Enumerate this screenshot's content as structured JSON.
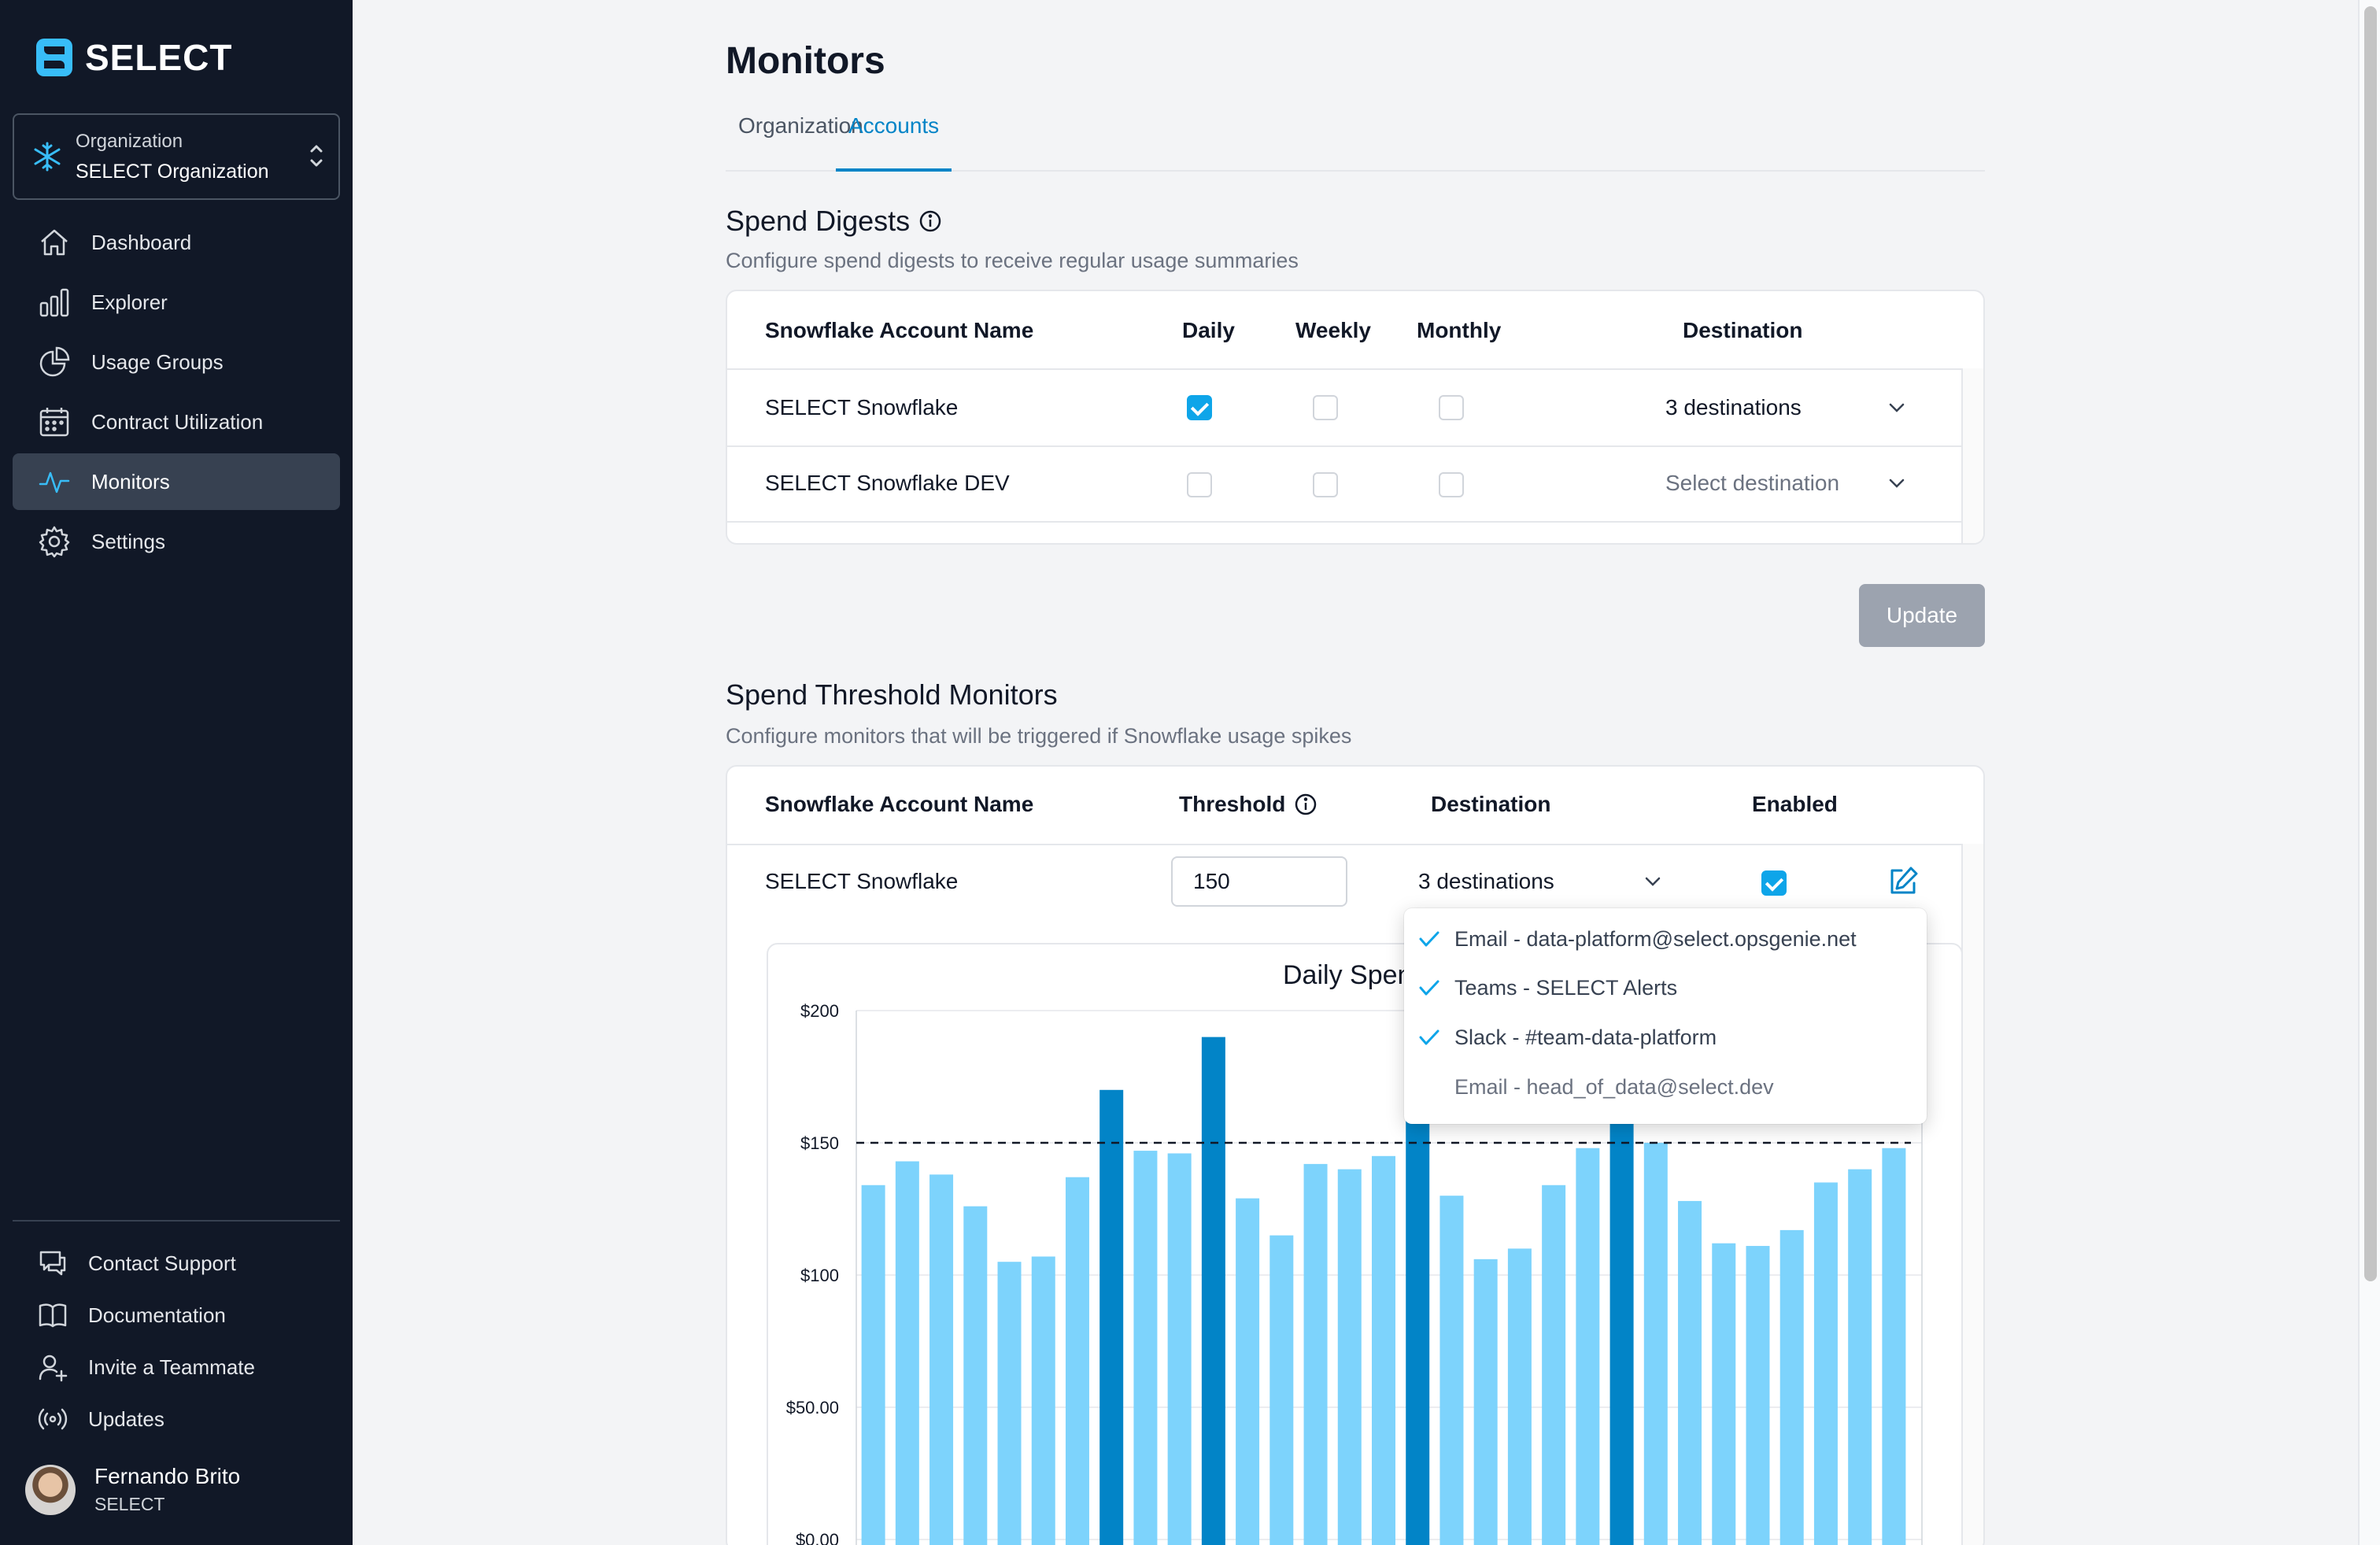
{
  "app": {
    "logo_text": "SELECT"
  },
  "org_switcher": {
    "label": "Organization",
    "name": "SELECT Organization"
  },
  "nav": {
    "items": [
      {
        "label": "Dashboard",
        "icon": "home-icon"
      },
      {
        "label": "Explorer",
        "icon": "bar-chart-icon"
      },
      {
        "label": "Usage Groups",
        "icon": "pie-chart-icon"
      },
      {
        "label": "Contract Utilization",
        "icon": "calendar-icon"
      },
      {
        "label": "Monitors",
        "icon": "activity-icon",
        "active": true
      },
      {
        "label": "Settings",
        "icon": "gear-icon"
      }
    ]
  },
  "bottom_nav": {
    "items": [
      {
        "label": "Contact Support",
        "icon": "chat-icon"
      },
      {
        "label": "Documentation",
        "icon": "book-icon"
      },
      {
        "label": "Invite a Teammate",
        "icon": "user-plus-icon"
      },
      {
        "label": "Updates",
        "icon": "broadcast-icon"
      }
    ]
  },
  "user": {
    "name": "Fernando Brito",
    "org": "SELECT"
  },
  "page": {
    "title": "Monitors",
    "tabs": [
      {
        "label": "Organization",
        "active": false
      },
      {
        "label": "Accounts",
        "active": true
      }
    ]
  },
  "spend_digests": {
    "title": "Spend Digests",
    "subtitle": "Configure spend digests to receive regular usage summaries",
    "headers": {
      "account": "Snowflake Account Name",
      "daily": "Daily",
      "weekly": "Weekly",
      "monthly": "Monthly",
      "destination": "Destination"
    },
    "rows": [
      {
        "account": "SELECT Snowflake",
        "daily": true,
        "weekly": false,
        "monthly": false,
        "destination": "3 destinations"
      },
      {
        "account": "SELECT Snowflake DEV",
        "daily": false,
        "weekly": false,
        "monthly": false,
        "destination": "Select destination"
      }
    ],
    "update_label": "Update"
  },
  "threshold_monitors": {
    "title": "Spend Threshold Monitors",
    "subtitle": "Configure monitors that will be triggered if Snowflake usage spikes",
    "headers": {
      "account": "Snowflake Account Name",
      "threshold": "Threshold",
      "destination": "Destination",
      "enabled": "Enabled"
    },
    "rows": [
      {
        "account": "SELECT Snowflake",
        "threshold": "150",
        "destination": "3 destinations",
        "enabled": true
      }
    ],
    "destination_options": [
      {
        "label": "Email - data-platform@select.opsgenie.net",
        "selected": true
      },
      {
        "label": "Teams - SELECT Alerts",
        "selected": true
      },
      {
        "label": "Slack - #team-data-platform",
        "selected": true
      },
      {
        "label": "Email - head_of_data@select.dev",
        "selected": false
      }
    ]
  },
  "colors": {
    "accent": "#0284c7",
    "bar_normal": "#7dd3fc",
    "bar_over": "#0284c7",
    "sidebar_bg": "#111827"
  },
  "chart_data": {
    "type": "bar",
    "title": "Daily Spen",
    "y_ticks": [
      "$200",
      "$150",
      "$100",
      "$50.00",
      "$0.00"
    ],
    "ylim": [
      0,
      200
    ],
    "threshold": 150,
    "values": [
      134,
      143,
      138,
      126,
      105,
      107,
      137,
      170,
      147,
      146,
      190,
      129,
      115,
      142,
      140,
      145,
      179,
      130,
      106,
      110,
      134,
      148,
      173,
      150,
      128,
      112,
      111,
      117,
      135,
      140,
      148
    ],
    "grid": true
  }
}
